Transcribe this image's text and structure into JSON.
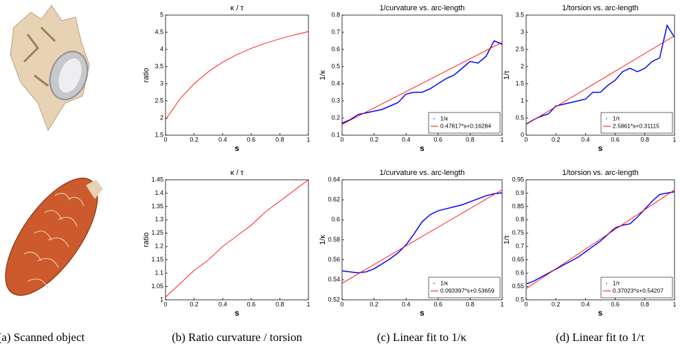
{
  "chart_data": [
    {
      "type": "line",
      "title": "κ / τ",
      "xlabel": "s",
      "ylabel": "ratio",
      "xlim": [
        0,
        1
      ],
      "xticks": [
        0,
        0.2,
        0.4,
        0.6,
        0.8,
        1
      ],
      "ylim": [
        1.5,
        5
      ],
      "yticks": [
        1.5,
        2,
        2.5,
        3,
        3.5,
        4,
        4.5,
        5
      ],
      "x": [
        0,
        0.1,
        0.2,
        0.3,
        0.4,
        0.5,
        0.6,
        0.7,
        0.8,
        0.9,
        1
      ],
      "values": [
        1.95,
        2.55,
        3.0,
        3.35,
        3.63,
        3.85,
        4.03,
        4.18,
        4.31,
        4.42,
        4.52
      ],
      "color": "#ff0000"
    },
    {
      "type": "line",
      "title": "1/curvature vs. arc-length",
      "xlabel": "s",
      "ylabel": "1/κ",
      "xlim": [
        0,
        1
      ],
      "xticks": [
        0,
        0.2,
        0.4,
        0.6,
        0.8,
        1
      ],
      "ylim": [
        0.1,
        0.8
      ],
      "yticks": [
        0.1,
        0.2,
        0.3,
        0.4,
        0.5,
        0.6,
        0.7,
        0.8
      ],
      "legend": "lower right",
      "series": [
        {
          "name": "1/κ",
          "color": "#0000ff",
          "x": [
            0,
            0.05,
            0.1,
            0.15,
            0.2,
            0.25,
            0.3,
            0.35,
            0.4,
            0.45,
            0.5,
            0.55,
            0.6,
            0.65,
            0.7,
            0.75,
            0.8,
            0.85,
            0.9,
            0.95,
            1
          ],
          "values": [
            0.17,
            0.19,
            0.22,
            0.23,
            0.24,
            0.25,
            0.27,
            0.29,
            0.34,
            0.35,
            0.35,
            0.37,
            0.4,
            0.43,
            0.45,
            0.49,
            0.53,
            0.52,
            0.56,
            0.65,
            0.63
          ]
        },
        {
          "name": "0.47817*s+0.16284",
          "color": "#ff0000",
          "x": [
            0,
            1
          ],
          "values": [
            0.16284,
            0.64101
          ]
        }
      ]
    },
    {
      "type": "line",
      "title": "1/torsion vs. arc-length",
      "xlabel": "s",
      "ylabel": "1/τ",
      "xlim": [
        0,
        1
      ],
      "xticks": [
        0,
        0.2,
        0.4,
        0.6,
        0.8,
        1
      ],
      "ylim": [
        0,
        3.5
      ],
      "yticks": [
        0,
        0.5,
        1,
        1.5,
        2,
        2.5,
        3,
        3.5
      ],
      "legend": "lower right",
      "series": [
        {
          "name": "1/τ",
          "color": "#0000ff",
          "x": [
            0,
            0.05,
            0.1,
            0.15,
            0.2,
            0.25,
            0.3,
            0.35,
            0.4,
            0.45,
            0.5,
            0.55,
            0.6,
            0.65,
            0.7,
            0.75,
            0.8,
            0.85,
            0.9,
            0.95,
            1
          ],
          "values": [
            0.32,
            0.45,
            0.55,
            0.62,
            0.85,
            0.9,
            0.95,
            1.0,
            1.05,
            1.25,
            1.25,
            1.45,
            1.6,
            1.85,
            1.95,
            1.85,
            1.95,
            2.15,
            2.25,
            3.2,
            2.85
          ]
        },
        {
          "name": "2.5861*s+0.31115",
          "color": "#ff0000",
          "x": [
            0,
            1
          ],
          "values": [
            0.31115,
            2.89725
          ]
        }
      ]
    },
    {
      "type": "line",
      "title": "κ / τ",
      "xlabel": "s",
      "ylabel": "ratio",
      "xlim": [
        0,
        1
      ],
      "xticks": [
        0,
        0.2,
        0.4,
        0.6,
        0.8,
        1
      ],
      "ylim": [
        1,
        1.45
      ],
      "yticks": [
        1,
        1.05,
        1.1,
        1.15,
        1.2,
        1.25,
        1.3,
        1.35,
        1.4,
        1.45
      ],
      "x": [
        0,
        0.1,
        0.2,
        0.3,
        0.4,
        0.5,
        0.6,
        0.7,
        0.8,
        0.9,
        1
      ],
      "values": [
        1.01,
        1.06,
        1.11,
        1.15,
        1.2,
        1.24,
        1.28,
        1.33,
        1.37,
        1.41,
        1.45
      ],
      "color": "#ff0000"
    },
    {
      "type": "line",
      "title": "1/curvature vs. arc-length",
      "xlabel": "s",
      "ylabel": "1/κ",
      "xlim": [
        0,
        1
      ],
      "xticks": [
        0,
        0.2,
        0.4,
        0.6,
        0.8,
        1
      ],
      "ylim": [
        0.52,
        0.64
      ],
      "yticks": [
        0.52,
        0.54,
        0.56,
        0.58,
        0.6,
        0.62,
        0.64
      ],
      "legend": "lower right",
      "series": [
        {
          "name": "1/κ",
          "color": "#0000ff",
          "x": [
            0,
            0.05,
            0.1,
            0.15,
            0.2,
            0.25,
            0.3,
            0.35,
            0.4,
            0.45,
            0.5,
            0.55,
            0.6,
            0.65,
            0.7,
            0.75,
            0.8,
            0.85,
            0.9,
            0.95,
            1
          ],
          "values": [
            0.549,
            0.548,
            0.547,
            0.548,
            0.551,
            0.556,
            0.561,
            0.567,
            0.575,
            0.586,
            0.598,
            0.605,
            0.609,
            0.611,
            0.613,
            0.615,
            0.618,
            0.621,
            0.624,
            0.626,
            0.627
          ]
        },
        {
          "name": "0.093397*s+0.53659",
          "color": "#ff0000",
          "x": [
            0,
            1
          ],
          "values": [
            0.53659,
            0.62999
          ]
        }
      ]
    },
    {
      "type": "line",
      "title": "1/torsion vs. arc-length",
      "xlabel": "s",
      "ylabel": "1/τ",
      "xlim": [
        0,
        1
      ],
      "xticks": [
        0,
        0.2,
        0.4,
        0.6,
        0.8,
        1
      ],
      "ylim": [
        0.5,
        0.95
      ],
      "yticks": [
        0.5,
        0.55,
        0.6,
        0.65,
        0.7,
        0.75,
        0.8,
        0.85,
        0.9,
        0.95
      ],
      "legend": "lower right",
      "series": [
        {
          "name": "1/τ",
          "color": "#0000ff",
          "x": [
            0,
            0.05,
            0.1,
            0.15,
            0.2,
            0.25,
            0.3,
            0.35,
            0.4,
            0.45,
            0.5,
            0.55,
            0.6,
            0.65,
            0.7,
            0.75,
            0.8,
            0.85,
            0.9,
            0.95,
            1
          ],
          "values": [
            0.56,
            0.57,
            0.585,
            0.6,
            0.615,
            0.63,
            0.645,
            0.66,
            0.68,
            0.7,
            0.72,
            0.745,
            0.77,
            0.78,
            0.785,
            0.81,
            0.84,
            0.87,
            0.895,
            0.9,
            0.905
          ]
        },
        {
          "name": "0.37023*s+0.54207",
          "color": "#ff0000",
          "x": [
            0,
            1
          ],
          "values": [
            0.54207,
            0.9123
          ]
        }
      ]
    }
  ],
  "captions": [
    "(a) Scanned object",
    "(b) Ratio curvature / torsion",
    "(c) Linear fit to 1/κ",
    "(d) Linear fit to 1/τ"
  ]
}
